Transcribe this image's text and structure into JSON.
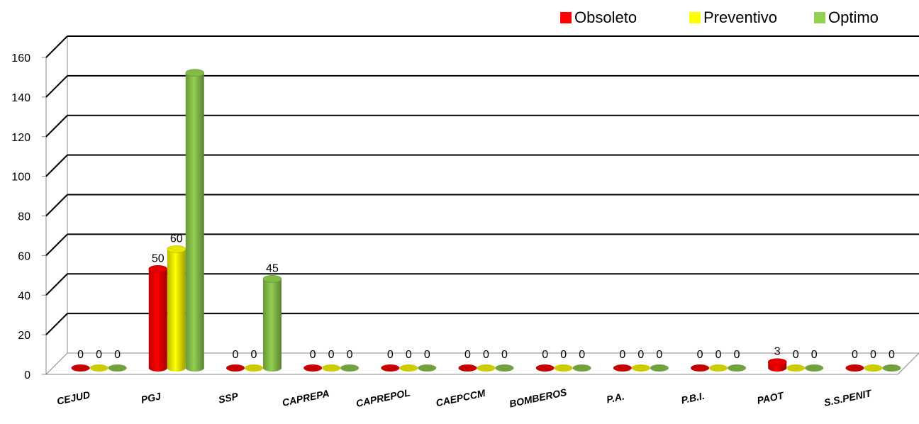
{
  "chart_data": {
    "type": "bar",
    "title": "",
    "xlabel": "",
    "ylabel": "",
    "ylim": [
      0,
      160
    ],
    "yticks": [
      0,
      20,
      40,
      60,
      80,
      100,
      120,
      140,
      160
    ],
    "grid": true,
    "legend_position": "top-right",
    "categories": [
      "CEJUD",
      "PGJ",
      "SSP",
      "CAPREPA",
      "CAPREPOL",
      "CAEPCCM",
      "BOMBEROS",
      "P.A.",
      "P.B.I.",
      "PAOT",
      "S.S.PENIT"
    ],
    "series": [
      {
        "name": "Obsoleto",
        "color": "#ff0000",
        "values": [
          0,
          50,
          0,
          0,
          0,
          0,
          0,
          0,
          0,
          3,
          0
        ],
        "labels_shown": [
          true,
          true,
          true,
          true,
          true,
          true,
          true,
          true,
          true,
          true,
          true
        ]
      },
      {
        "name": "Preventivo",
        "color": "#ffff00",
        "values": [
          0,
          60,
          0,
          0,
          0,
          0,
          0,
          0,
          0,
          0,
          0
        ],
        "labels_shown": [
          true,
          true,
          true,
          true,
          true,
          true,
          true,
          true,
          true,
          true,
          true
        ]
      },
      {
        "name": "Optimo",
        "color": "#92d050",
        "values": [
          0,
          149,
          45,
          0,
          0,
          0,
          0,
          0,
          0,
          0,
          0
        ],
        "labels_shown": [
          true,
          false,
          true,
          true,
          true,
          true,
          true,
          true,
          true,
          true,
          true
        ]
      }
    ]
  }
}
